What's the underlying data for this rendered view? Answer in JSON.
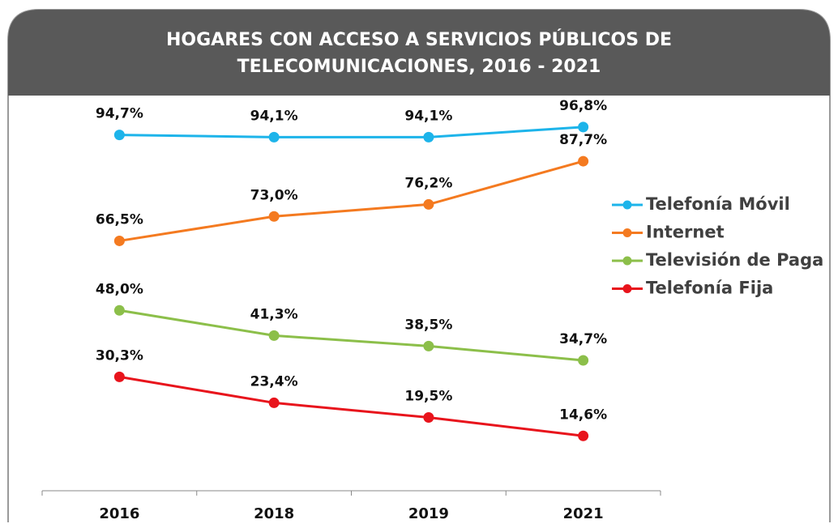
{
  "chart_data": {
    "type": "line",
    "title": [
      "HOGARES CON ACCESO A SERVICIOS PÚBLICOS DE",
      "TELECOMUNICACIONES, 2016 - 2021"
    ],
    "categories": [
      "2016",
      "2018",
      "2019",
      "2021"
    ],
    "series": [
      {
        "name": "Telefonía Móvil",
        "color": "#1db4ea",
        "values": [
          94.7,
          94.1,
          94.1,
          96.8
        ],
        "value_labels": [
          "94,7%",
          "94,1%",
          "94,1%",
          "96,8%"
        ]
      },
      {
        "name": "Internet",
        "color": "#f47a20",
        "values": [
          66.5,
          73.0,
          76.2,
          87.7
        ],
        "value_labels": [
          "66,5%",
          "73,0%",
          "76,2%",
          "87,7%"
        ]
      },
      {
        "name": "Televisión de Paga",
        "color": "#8cbf4a",
        "values": [
          48.0,
          41.3,
          38.5,
          34.7
        ],
        "value_labels": [
          "48,0%",
          "41,3%",
          "38,5%",
          "34,7%"
        ]
      },
      {
        "name": "Telefonía Fija",
        "color": "#e8141c",
        "values": [
          30.3,
          23.4,
          19.5,
          14.6
        ],
        "value_labels": [
          "30,3%",
          "23,4%",
          "19,5%",
          "14,6%"
        ]
      }
    ],
    "ylim": [
      0,
      100
    ],
    "legend": "right"
  }
}
